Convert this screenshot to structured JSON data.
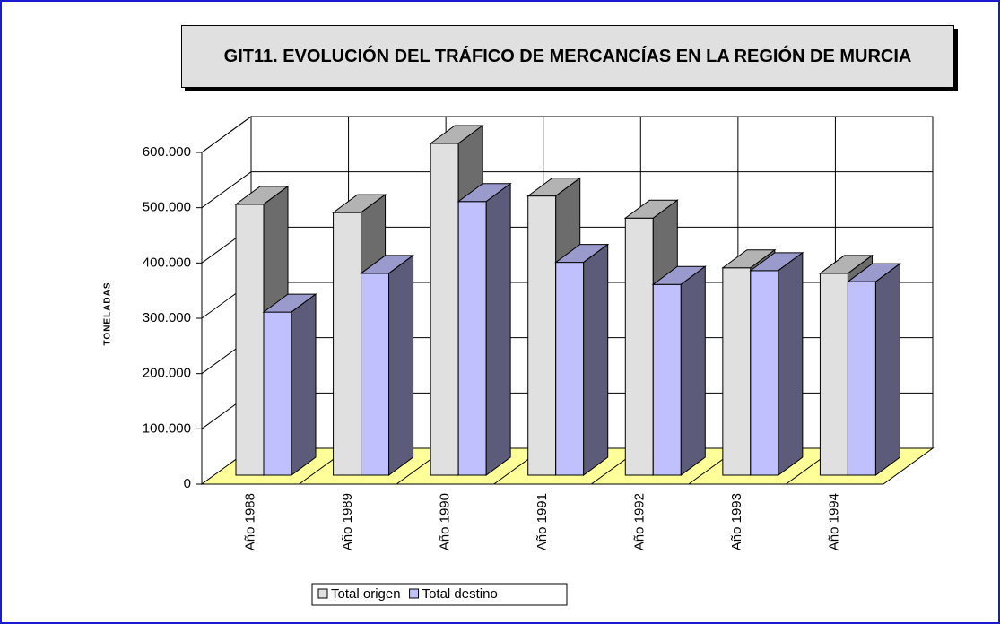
{
  "chart_data": {
    "type": "bar3d",
    "title": "GIT11. EVOLUCIÓN DEL TRÁFICO DE MERCANCÍAS EN LA REGIÓN DE MURCIA",
    "y_label": "TONELADAS",
    "categories": [
      "Año 1988",
      "Año 1989",
      "Año 1990",
      "Año 1991",
      "Año 1992",
      "Año 1993",
      "Año 1994"
    ],
    "series": [
      {
        "name": "Total origen",
        "color": "#e0e0e0",
        "values": [
          490000,
          475000,
          600000,
          505000,
          465000,
          375000,
          365000
        ]
      },
      {
        "name": "Total destino",
        "color": "#c0c0ff",
        "values": [
          295000,
          365000,
          495000,
          385000,
          345000,
          370000,
          350000
        ]
      }
    ],
    "ylim": [
      0,
      600000
    ],
    "yticks": [
      0,
      {
        "value": 100000,
        "label": "100.000"
      },
      {
        "value": 200000,
        "label": "200.000"
      },
      {
        "value": 300000,
        "label": "300.000"
      },
      {
        "value": 400000,
        "label": "400.000"
      },
      {
        "value": 500000,
        "label": "500.000"
      },
      {
        "value": 600000,
        "label": "600.000"
      }
    ],
    "grid": true,
    "floor_color": "#ffff99"
  }
}
